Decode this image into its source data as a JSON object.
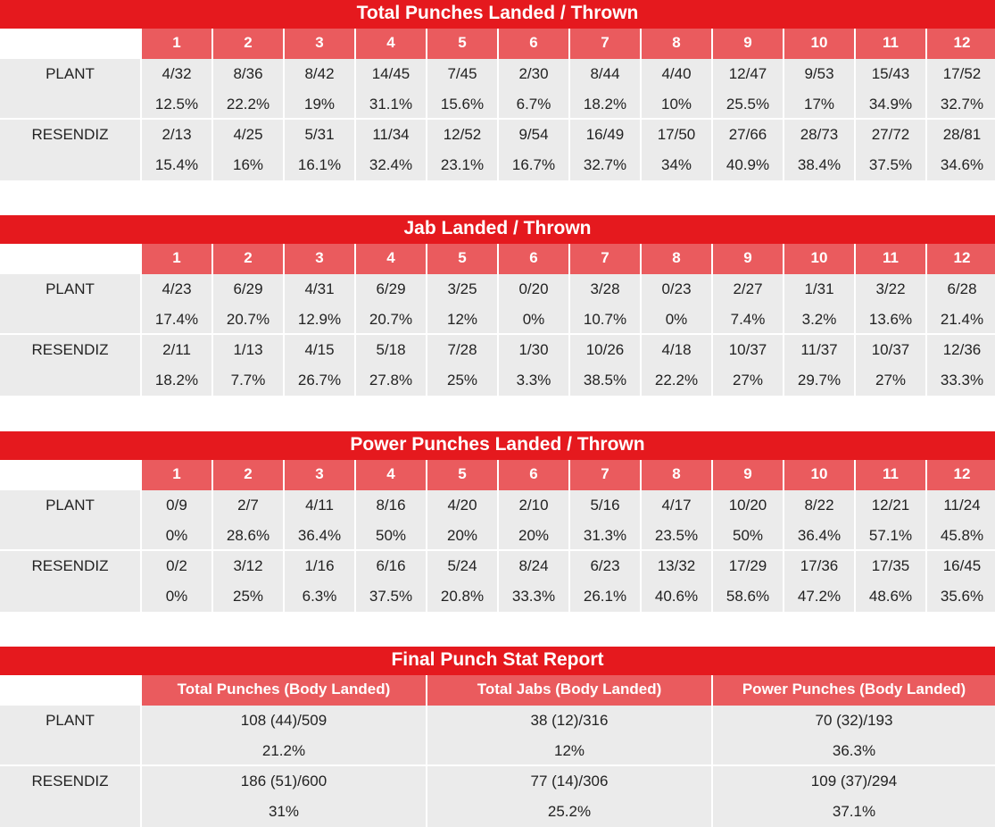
{
  "rounds": [
    "1",
    "2",
    "3",
    "4",
    "5",
    "6",
    "7",
    "8",
    "9",
    "10",
    "11",
    "12"
  ],
  "tables": [
    {
      "title": "Total Punches Landed / Thrown",
      "rows": [
        {
          "name": "PLANT",
          "counts": [
            "4/32",
            "8/36",
            "8/42",
            "14/45",
            "7/45",
            "2/30",
            "8/44",
            "4/40",
            "12/47",
            "9/53",
            "15/43",
            "17/52"
          ],
          "pcts": [
            "12.5%",
            "22.2%",
            "19%",
            "31.1%",
            "15.6%",
            "6.7%",
            "18.2%",
            "10%",
            "25.5%",
            "17%",
            "34.9%",
            "32.7%"
          ]
        },
        {
          "name": "RESENDIZ",
          "counts": [
            "2/13",
            "4/25",
            "5/31",
            "11/34",
            "12/52",
            "9/54",
            "16/49",
            "17/50",
            "27/66",
            "28/73",
            "27/72",
            "28/81"
          ],
          "pcts": [
            "15.4%",
            "16%",
            "16.1%",
            "32.4%",
            "23.1%",
            "16.7%",
            "32.7%",
            "34%",
            "40.9%",
            "38.4%",
            "37.5%",
            "34.6%"
          ]
        }
      ]
    },
    {
      "title": "Jab Landed / Thrown",
      "rows": [
        {
          "name": "PLANT",
          "counts": [
            "4/23",
            "6/29",
            "4/31",
            "6/29",
            "3/25",
            "0/20",
            "3/28",
            "0/23",
            "2/27",
            "1/31",
            "3/22",
            "6/28"
          ],
          "pcts": [
            "17.4%",
            "20.7%",
            "12.9%",
            "20.7%",
            "12%",
            "0%",
            "10.7%",
            "0%",
            "7.4%",
            "3.2%",
            "13.6%",
            "21.4%"
          ]
        },
        {
          "name": "RESENDIZ",
          "counts": [
            "2/11",
            "1/13",
            "4/15",
            "5/18",
            "7/28",
            "1/30",
            "10/26",
            "4/18",
            "10/37",
            "11/37",
            "10/37",
            "12/36"
          ],
          "pcts": [
            "18.2%",
            "7.7%",
            "26.7%",
            "27.8%",
            "25%",
            "3.3%",
            "38.5%",
            "22.2%",
            "27%",
            "29.7%",
            "27%",
            "33.3%"
          ]
        }
      ]
    },
    {
      "title": "Power Punches Landed / Thrown",
      "rows": [
        {
          "name": "PLANT",
          "counts": [
            "0/9",
            "2/7",
            "4/11",
            "8/16",
            "4/20",
            "2/10",
            "5/16",
            "4/17",
            "10/20",
            "8/22",
            "12/21",
            "11/24"
          ],
          "pcts": [
            "0%",
            "28.6%",
            "36.4%",
            "50%",
            "20%",
            "20%",
            "31.3%",
            "23.5%",
            "50%",
            "36.4%",
            "57.1%",
            "45.8%"
          ]
        },
        {
          "name": "RESENDIZ",
          "counts": [
            "0/2",
            "3/12",
            "1/16",
            "6/16",
            "5/24",
            "8/24",
            "6/23",
            "13/32",
            "17/29",
            "17/36",
            "17/35",
            "16/45"
          ],
          "pcts": [
            "0%",
            "25%",
            "6.3%",
            "37.5%",
            "20.8%",
            "33.3%",
            "26.1%",
            "40.6%",
            "58.6%",
            "47.2%",
            "48.6%",
            "35.6%"
          ]
        }
      ]
    }
  ],
  "summary": {
    "title": "Final Punch Stat Report",
    "headers": [
      "Total Punches (Body Landed)",
      "Total Jabs (Body Landed)",
      "Power Punches (Body Landed)"
    ],
    "rows": [
      {
        "name": "PLANT",
        "counts": [
          "108 (44)/509",
          "38 (12)/316",
          "70 (32)/193"
        ],
        "pcts": [
          "21.2%",
          "12%",
          "36.3%"
        ]
      },
      {
        "name": "RESENDIZ",
        "counts": [
          "186 (51)/600",
          "77 (14)/306",
          "109 (37)/294"
        ],
        "pcts": [
          "31%",
          "25.2%",
          "37.1%"
        ]
      }
    ]
  }
}
